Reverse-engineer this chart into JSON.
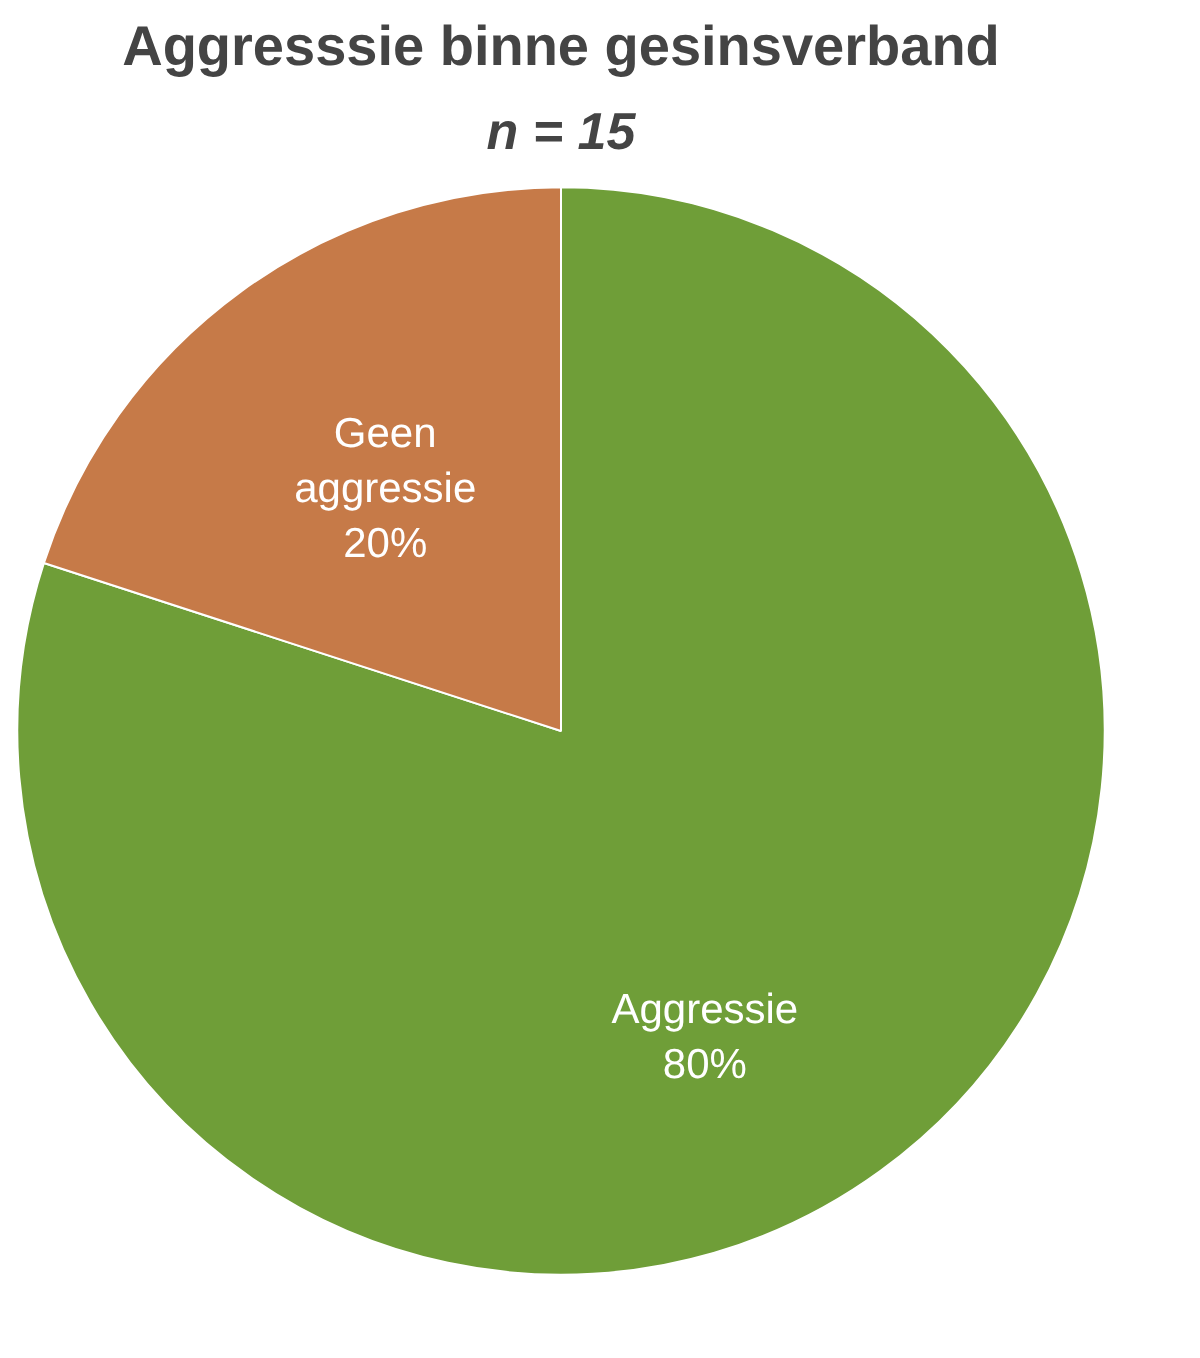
{
  "chart_data": {
    "type": "pie",
    "title": "Aggresssie binne gesinsverband",
    "subtitle": "n = 15",
    "categories": [
      "Aggressie",
      "Geen aggressie"
    ],
    "values": [
      80,
      20
    ],
    "colors": [
      "#6f9e38",
      "#c67a48"
    ],
    "value_labels": [
      "80%",
      "20%"
    ]
  }
}
